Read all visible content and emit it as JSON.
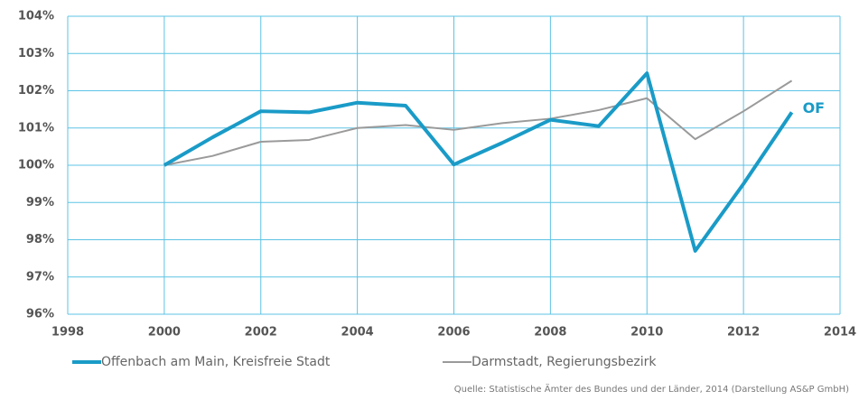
{
  "chart_data": {
    "type": "line",
    "x": [
      2000,
      2001,
      2002,
      2003,
      2004,
      2005,
      2006,
      2007,
      2008,
      2009,
      2010,
      2011,
      2012,
      2013
    ],
    "series": [
      {
        "name": "Offenbach am Main, Kreisfreie Stadt",
        "color": "#1a9bc7",
        "values": [
          100,
          100.75,
          101.45,
          101.42,
          101.68,
          101.6,
          100.02,
          100.6,
          101.22,
          101.05,
          102.47,
          97.7,
          99.5,
          101.42
        ]
      },
      {
        "name": "Darmstadt, Regierungsbezirk",
        "color": "#9a9a9a",
        "values": [
          100,
          100.25,
          100.63,
          100.68,
          101.0,
          101.08,
          100.95,
          101.13,
          101.25,
          101.48,
          101.8,
          100.7,
          101.45,
          102.27
        ]
      }
    ],
    "xlim": [
      1998,
      2014
    ],
    "xticks": [
      1998,
      2000,
      2002,
      2004,
      2006,
      2008,
      2010,
      2012,
      2014
    ],
    "ylim": [
      96,
      104
    ],
    "yticks": [
      {
        "value": 96,
        "label": "96%"
      },
      {
        "value": 97,
        "label": "97%"
      },
      {
        "value": 98,
        "label": "98%"
      },
      {
        "value": 99,
        "label": "99%"
      },
      {
        "value": 100,
        "label": "100%"
      },
      {
        "value": 101,
        "label": "101%"
      },
      {
        "value": 102,
        "label": "102%"
      },
      {
        "value": 103,
        "label": "103%"
      },
      {
        "value": 104,
        "label": "104%"
      }
    ],
    "grid": true,
    "grid_color": "#5cc3e4",
    "annotation": "OF",
    "source": "Quelle: Statistische Ämter des Bundes und der Länder, 2014 (Darstellung AS&P GmbH)"
  }
}
